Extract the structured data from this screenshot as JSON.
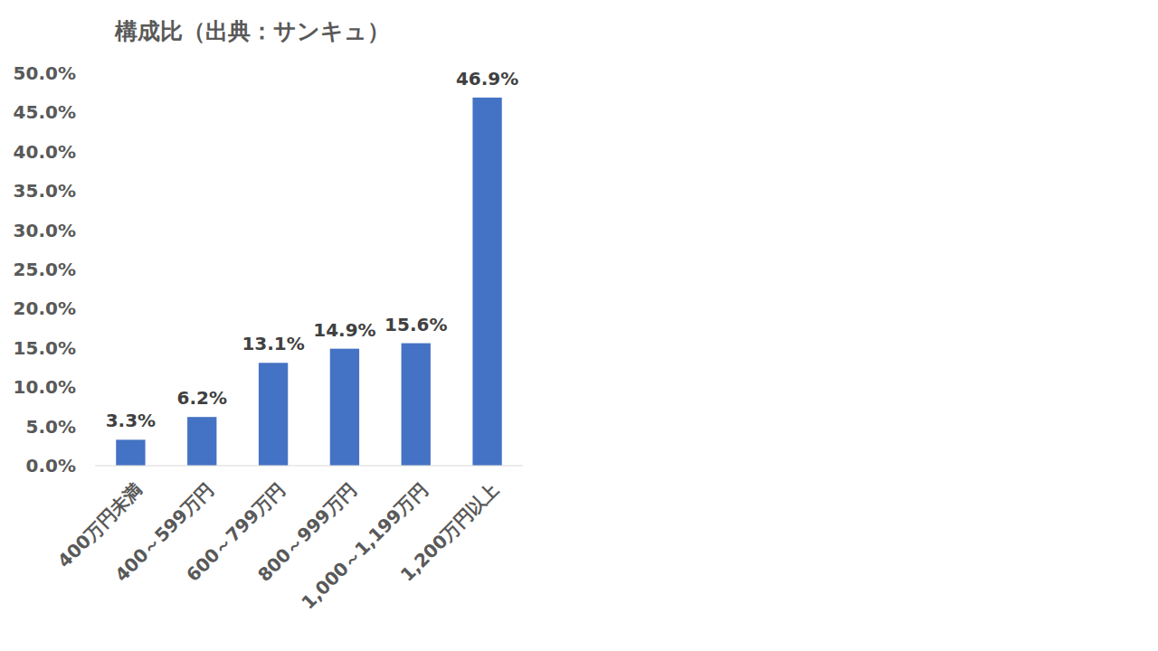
{
  "chart_data": {
    "type": "bar",
    "title": "構成比（出典：サンキュ）",
    "categories": [
      "400万円未満",
      "400～599万円",
      "600～799万円",
      "800～999万円",
      "1,000～1,199万円",
      "1,200万円以上"
    ],
    "values": [
      3.3,
      6.2,
      13.1,
      14.9,
      15.6,
      46.9
    ],
    "value_labels": [
      "3.3%",
      "6.2%",
      "13.1%",
      "14.9%",
      "15.6%",
      "46.9%"
    ],
    "color": "#4472c4",
    "ylim": [
      0,
      50
    ],
    "yticks": [
      {
        "value": 0,
        "label": "0.0%"
      },
      {
        "value": 5,
        "label": "5.0%"
      },
      {
        "value": 10,
        "label": "10.0%"
      },
      {
        "value": 15,
        "label": "15.0%"
      },
      {
        "value": 20,
        "label": "20.0%"
      },
      {
        "value": 25,
        "label": "25.0%"
      },
      {
        "value": 30,
        "label": "30.0%"
      },
      {
        "value": 35,
        "label": "35.0%"
      },
      {
        "value": 40,
        "label": "40.0%"
      },
      {
        "value": 45,
        "label": "45.0%"
      },
      {
        "value": 50,
        "label": "50.0%"
      }
    ],
    "grid": false,
    "data_labels": true
  }
}
